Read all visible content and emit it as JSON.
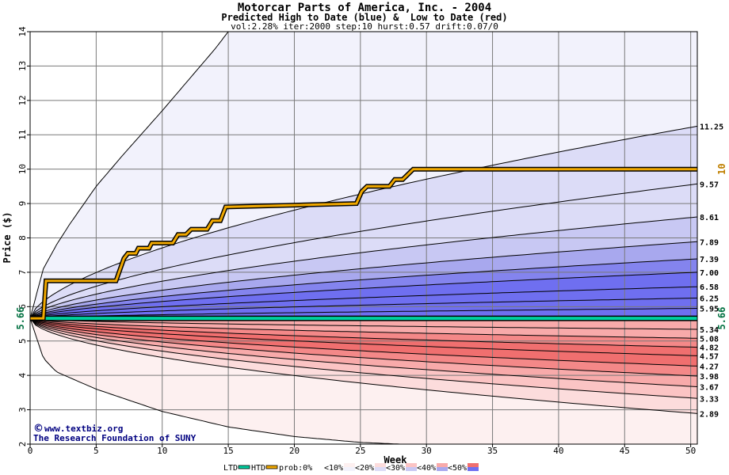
{
  "chart_data": {
    "type": "area",
    "title": "Motorcar Parts of America, Inc. - 2004",
    "subtitle": "Predicted High to Date (blue) &  Low to Date (red)",
    "params": "vol:2.28% iter:2000 step:10 hurst:0.57 drift:0.07/0",
    "xlabel": "Week",
    "ylabel": "Price ($)",
    "xlim": [
      0,
      50.5
    ],
    "ylim": [
      2,
      14
    ],
    "xticks": [
      0,
      5,
      10,
      15,
      20,
      25,
      30,
      35,
      40,
      45,
      50
    ],
    "yticks": [
      2,
      3,
      4,
      5,
      6,
      7,
      8,
      9,
      10,
      11,
      12,
      13,
      14
    ],
    "grid": true,
    "start_price": 5.66,
    "start_label": "5.66",
    "right_price_label": "5.66",
    "htd_label": "10",
    "high_quantile_endpoints": [
      11.25,
      9.57,
      8.61,
      7.89,
      7.39,
      7.0,
      6.58,
      6.25,
      5.95
    ],
    "high_quantile_labels": [
      "11.25",
      "9.57",
      "8.61",
      "7.89",
      "7.39",
      "7.00",
      "6.58",
      "6.25",
      "5.95"
    ],
    "low_quantile_endpoints": [
      5.34,
      5.08,
      4.82,
      4.57,
      4.27,
      3.98,
      3.67,
      3.33,
      2.89
    ],
    "low_quantile_labels": [
      "5.34",
      "5.08",
      "4.82",
      "4.57",
      "4.27",
      "3.98",
      "3.67",
      "3.33",
      "2.89"
    ],
    "outer_high_envelope": {
      "x": [
        0,
        1,
        2,
        3,
        5,
        7,
        10,
        12,
        14,
        15
      ],
      "y": [
        5.66,
        7.1,
        7.8,
        8.4,
        9.5,
        10.4,
        11.7,
        12.6,
        13.5,
        14.0
      ]
    },
    "outer_low_envelope": {
      "x": [
        0,
        1,
        2,
        5,
        10,
        15,
        20,
        25,
        28
      ],
      "y": [
        5.66,
        4.5,
        4.1,
        3.6,
        2.95,
        2.5,
        2.22,
        2.05,
        2.0
      ]
    },
    "htd_series": {
      "name": "HTD",
      "x": [
        0,
        1,
        1.2,
        6.5,
        7.1,
        7.4,
        8.0,
        8.2,
        9.0,
        9.2,
        10.8,
        11.2,
        11.8,
        12.2,
        13.4,
        13.8,
        14.4,
        14.8,
        24.7,
        25.1,
        25.5,
        27.2,
        27.6,
        28.2,
        28.6,
        29.0,
        50.5
      ],
      "y": [
        5.66,
        5.66,
        6.75,
        6.75,
        7.4,
        7.55,
        7.55,
        7.7,
        7.7,
        7.85,
        7.85,
        8.1,
        8.1,
        8.25,
        8.25,
        8.5,
        8.5,
        8.9,
        9.0,
        9.35,
        9.5,
        9.5,
        9.7,
        9.7,
        9.85,
        10.0,
        10.0
      ]
    },
    "ltd_series": {
      "name": "LTD",
      "x": [
        0,
        50.5
      ],
      "y": [
        5.66,
        5.66
      ]
    },
    "legend": {
      "position": "bottom",
      "ltd": "LTD",
      "htd": "HTD",
      "items": [
        "prob:0%",
        "<10%",
        "<20%",
        "<30%",
        "<40%",
        "<50%"
      ]
    },
    "credit_line1": "www.textbiz.org",
    "credit_line2": "The Research Foundation of SUNY",
    "colors": {
      "blue_bands": [
        "#f2f2fc",
        "#dcdcf7",
        "#c8c8f3",
        "#a8a8ee",
        "#8484ee",
        "#6f6ff0"
      ],
      "red_bands": [
        "#fdf0f0",
        "#fcdcdc",
        "#fbc4c4",
        "#f8aaaa",
        "#f48888",
        "#f06f6f"
      ],
      "htd": "#f0a800",
      "ltd": "#00d0a0",
      "green_label": "#007040",
      "orange_label": "#c08000",
      "credit": "#000080"
    }
  }
}
